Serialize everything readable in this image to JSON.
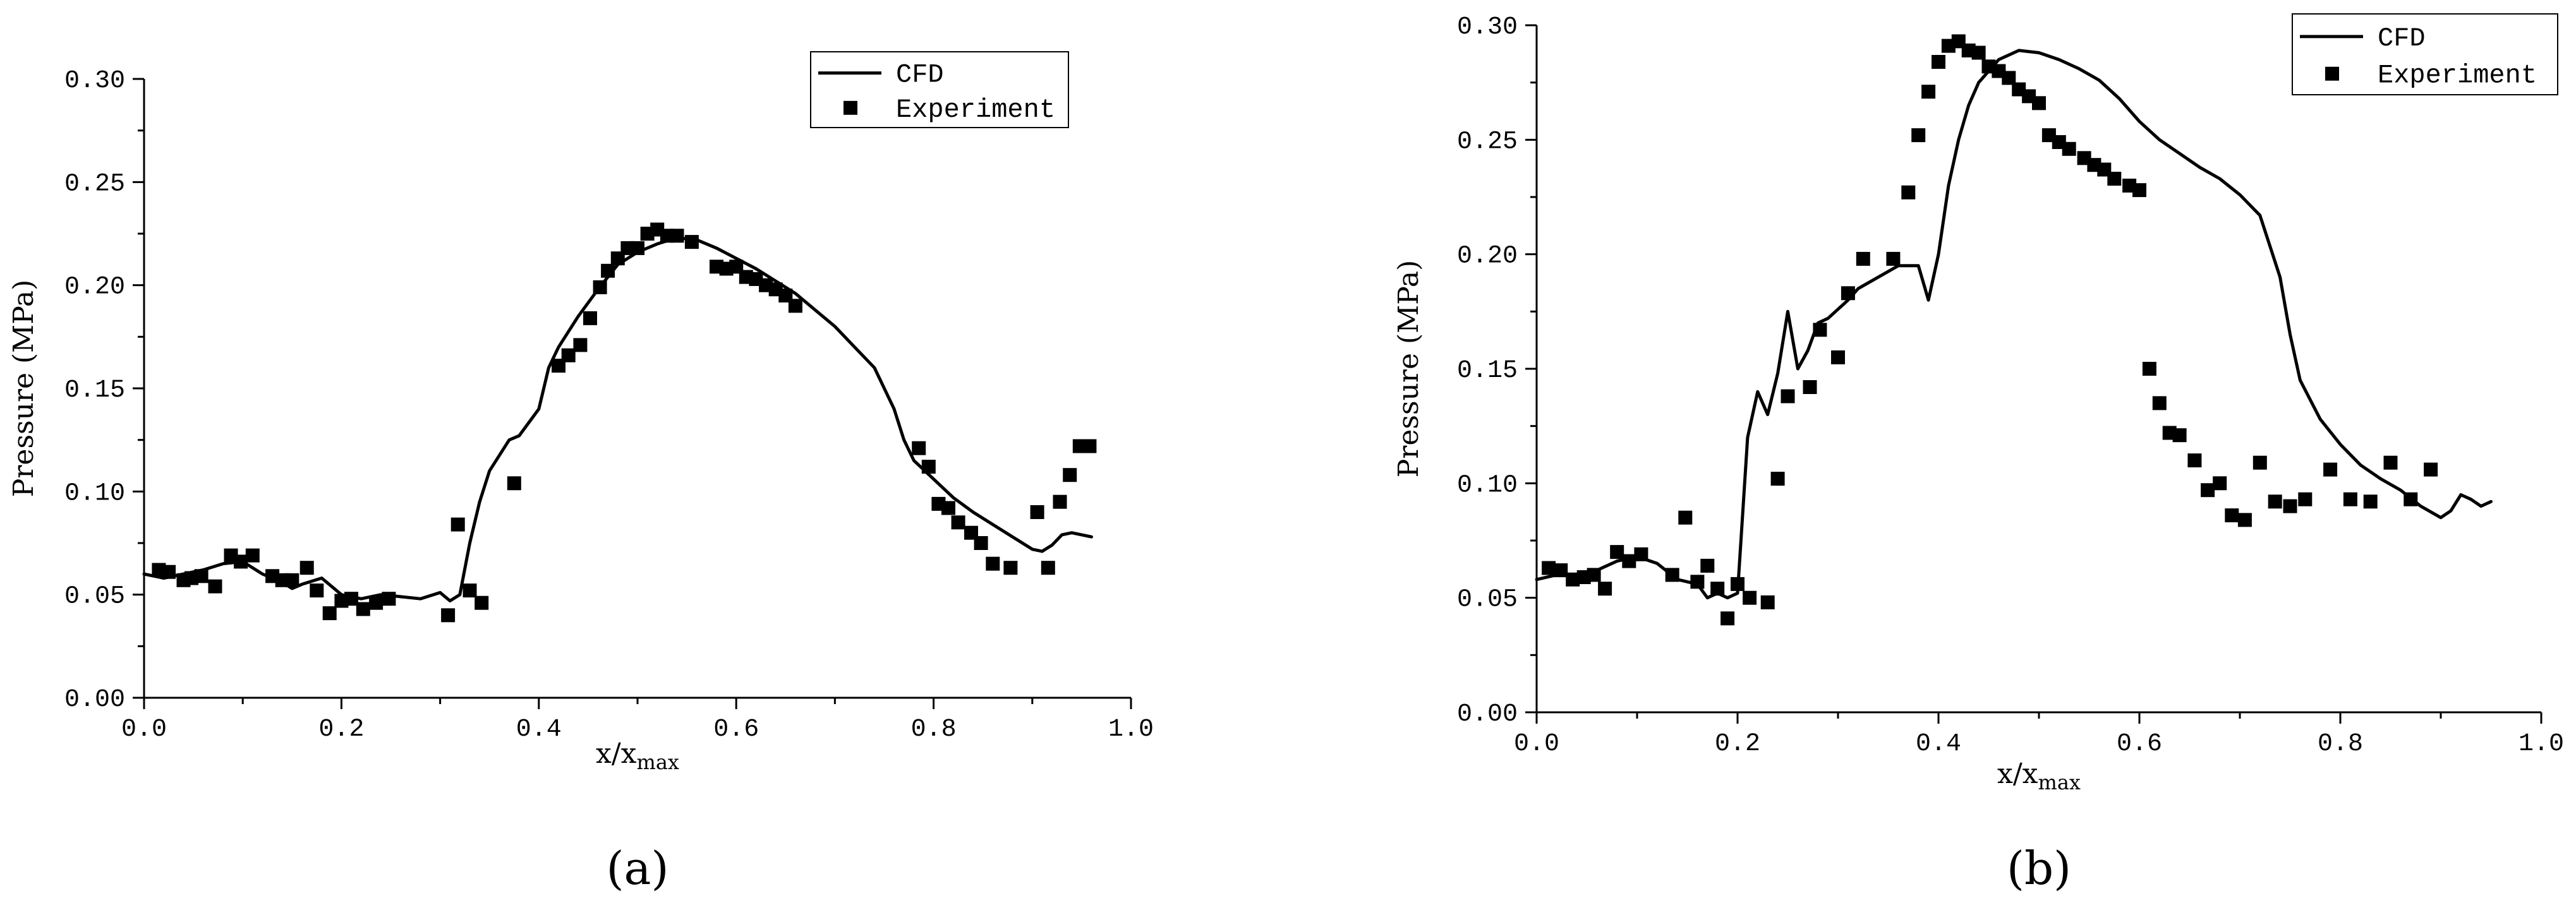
{
  "chart_data": [
    {
      "type": "line+scatter",
      "panel_label": "(a)",
      "xlabel": "x/x",
      "xlabel_sub": "max",
      "ylabel": "Pressure (MPa)",
      "xlim": [
        0.0,
        1.0
      ],
      "ylim": [
        0.0,
        0.3
      ],
      "x_ticks": [
        "0.0",
        "0.2",
        "0.4",
        "0.6",
        "0.8",
        "1.0"
      ],
      "y_ticks": [
        "0.00",
        "0.05",
        "0.10",
        "0.15",
        "0.20",
        "0.25",
        "0.30"
      ],
      "legend": {
        "position": "top-right",
        "entries": [
          {
            "label": "CFD",
            "kind": "line"
          },
          {
            "label": "Experiment",
            "kind": "marker"
          }
        ]
      },
      "series": [
        {
          "name": "CFD",
          "kind": "line",
          "x": [
            0.0,
            0.02,
            0.04,
            0.06,
            0.08,
            0.1,
            0.12,
            0.14,
            0.15,
            0.16,
            0.18,
            0.2,
            0.22,
            0.24,
            0.26,
            0.28,
            0.3,
            0.31,
            0.32,
            0.33,
            0.34,
            0.35,
            0.37,
            0.38,
            0.4,
            0.41,
            0.42,
            0.44,
            0.46,
            0.48,
            0.5,
            0.52,
            0.54,
            0.56,
            0.58,
            0.6,
            0.62,
            0.64,
            0.66,
            0.68,
            0.7,
            0.72,
            0.74,
            0.76,
            0.77,
            0.78,
            0.8,
            0.82,
            0.84,
            0.86,
            0.88,
            0.9,
            0.91,
            0.92,
            0.93,
            0.94,
            0.95,
            0.96
          ],
          "y": [
            0.06,
            0.058,
            0.06,
            0.062,
            0.065,
            0.066,
            0.06,
            0.056,
            0.053,
            0.055,
            0.058,
            0.05,
            0.048,
            0.05,
            0.049,
            0.048,
            0.051,
            0.047,
            0.05,
            0.075,
            0.095,
            0.11,
            0.125,
            0.127,
            0.14,
            0.16,
            0.17,
            0.185,
            0.198,
            0.21,
            0.216,
            0.22,
            0.223,
            0.222,
            0.218,
            0.213,
            0.208,
            0.202,
            0.196,
            0.188,
            0.18,
            0.17,
            0.16,
            0.14,
            0.125,
            0.115,
            0.106,
            0.097,
            0.09,
            0.084,
            0.078,
            0.072,
            0.071,
            0.074,
            0.079,
            0.08,
            0.079,
            0.078
          ]
        },
        {
          "name": "Experiment",
          "kind": "scatter",
          "x": [
            0.015,
            0.025,
            0.04,
            0.048,
            0.058,
            0.072,
            0.088,
            0.098,
            0.11,
            0.13,
            0.14,
            0.15,
            0.165,
            0.175,
            0.188,
            0.2,
            0.21,
            0.222,
            0.235,
            0.248,
            0.308,
            0.318,
            0.33,
            0.342,
            0.375,
            0.42,
            0.43,
            0.442,
            0.452,
            0.462,
            0.47,
            0.48,
            0.49,
            0.5,
            0.51,
            0.52,
            0.53,
            0.54,
            0.555,
            0.58,
            0.59,
            0.6,
            0.61,
            0.62,
            0.63,
            0.64,
            0.65,
            0.66,
            0.785,
            0.795,
            0.805,
            0.815,
            0.825,
            0.838,
            0.848,
            0.86,
            0.878,
            0.905,
            0.916,
            0.928,
            0.938,
            0.948,
            0.958
          ],
          "y": [
            0.062,
            0.061,
            0.057,
            0.058,
            0.059,
            0.054,
            0.069,
            0.066,
            0.069,
            0.059,
            0.057,
            0.057,
            0.063,
            0.052,
            0.041,
            0.047,
            0.048,
            0.043,
            0.046,
            0.048,
            0.04,
            0.084,
            0.052,
            0.046,
            0.104,
            0.161,
            0.166,
            0.171,
            0.184,
            0.199,
            0.207,
            0.213,
            0.218,
            0.218,
            0.225,
            0.227,
            0.224,
            0.224,
            0.221,
            0.209,
            0.208,
            0.209,
            0.204,
            0.203,
            0.2,
            0.198,
            0.195,
            0.19,
            0.121,
            0.112,
            0.094,
            0.092,
            0.085,
            0.08,
            0.075,
            0.065,
            0.063,
            0.09,
            0.063,
            0.095,
            0.108,
            0.122,
            0.122
          ]
        }
      ]
    },
    {
      "type": "line+scatter",
      "panel_label": "(b)",
      "xlabel": "x/x",
      "xlabel_sub": "max",
      "ylabel": "Pressure (MPa)",
      "xlim": [
        0.0,
        1.0
      ],
      "ylim": [
        0.0,
        0.3
      ],
      "x_ticks": [
        "0.0",
        "0.2",
        "0.4",
        "0.6",
        "0.8",
        "1.0"
      ],
      "y_ticks": [
        "0.00",
        "0.05",
        "0.10",
        "0.15",
        "0.20",
        "0.25",
        "0.30"
      ],
      "legend": {
        "position": "top-right",
        "entries": [
          {
            "label": "CFD",
            "kind": "line"
          },
          {
            "label": "Experiment",
            "kind": "marker"
          }
        ]
      },
      "series": [
        {
          "name": "CFD",
          "kind": "line",
          "x": [
            0.0,
            0.02,
            0.04,
            0.06,
            0.08,
            0.1,
            0.12,
            0.14,
            0.16,
            0.17,
            0.18,
            0.19,
            0.2,
            0.21,
            0.22,
            0.23,
            0.24,
            0.25,
            0.26,
            0.27,
            0.28,
            0.29,
            0.3,
            0.31,
            0.32,
            0.34,
            0.36,
            0.38,
            0.39,
            0.4,
            0.41,
            0.42,
            0.43,
            0.44,
            0.46,
            0.48,
            0.5,
            0.52,
            0.54,
            0.56,
            0.58,
            0.6,
            0.62,
            0.64,
            0.66,
            0.68,
            0.7,
            0.72,
            0.74,
            0.75,
            0.76,
            0.78,
            0.8,
            0.82,
            0.84,
            0.86,
            0.88,
            0.9,
            0.91,
            0.92,
            0.93,
            0.94,
            0.95
          ],
          "y": [
            0.058,
            0.06,
            0.06,
            0.062,
            0.066,
            0.068,
            0.065,
            0.058,
            0.056,
            0.05,
            0.052,
            0.05,
            0.052,
            0.12,
            0.14,
            0.13,
            0.148,
            0.175,
            0.15,
            0.158,
            0.17,
            0.172,
            0.176,
            0.18,
            0.185,
            0.19,
            0.195,
            0.195,
            0.18,
            0.2,
            0.23,
            0.25,
            0.265,
            0.275,
            0.285,
            0.289,
            0.288,
            0.285,
            0.281,
            0.276,
            0.268,
            0.258,
            0.25,
            0.244,
            0.238,
            0.233,
            0.226,
            0.217,
            0.19,
            0.165,
            0.145,
            0.128,
            0.117,
            0.108,
            0.102,
            0.097,
            0.09,
            0.085,
            0.088,
            0.095,
            0.093,
            0.09,
            0.092
          ]
        },
        {
          "name": "Experiment",
          "kind": "scatter",
          "x": [
            0.012,
            0.024,
            0.036,
            0.047,
            0.057,
            0.068,
            0.08,
            0.092,
            0.104,
            0.135,
            0.148,
            0.16,
            0.17,
            0.18,
            0.19,
            0.2,
            0.212,
            0.23,
            0.24,
            0.25,
            0.272,
            0.282,
            0.3,
            0.31,
            0.325,
            0.355,
            0.37,
            0.38,
            0.39,
            0.4,
            0.41,
            0.42,
            0.43,
            0.44,
            0.45,
            0.46,
            0.47,
            0.48,
            0.49,
            0.5,
            0.51,
            0.52,
            0.53,
            0.545,
            0.555,
            0.565,
            0.575,
            0.59,
            0.6,
            0.61,
            0.62,
            0.63,
            0.64,
            0.655,
            0.668,
            0.68,
            0.692,
            0.705,
            0.72,
            0.735,
            0.75,
            0.765,
            0.79,
            0.81,
            0.83,
            0.85,
            0.87,
            0.89
          ],
          "y": [
            0.063,
            0.062,
            0.058,
            0.059,
            0.06,
            0.054,
            0.07,
            0.066,
            0.069,
            0.06,
            0.085,
            0.057,
            0.064,
            0.054,
            0.041,
            0.056,
            0.05,
            0.048,
            0.102,
            0.138,
            0.142,
            0.167,
            0.155,
            0.183,
            0.198,
            0.198,
            0.227,
            0.252,
            0.271,
            0.284,
            0.291,
            0.293,
            0.289,
            0.288,
            0.282,
            0.28,
            0.277,
            0.272,
            0.269,
            0.266,
            0.252,
            0.249,
            0.246,
            0.242,
            0.239,
            0.237,
            0.233,
            0.23,
            0.228,
            0.15,
            0.135,
            0.122,
            0.121,
            0.11,
            0.097,
            0.1,
            0.086,
            0.084,
            0.109,
            0.092,
            0.09,
            0.093,
            0.106,
            0.093,
            0.092,
            0.109,
            0.093,
            0.106
          ]
        }
      ]
    }
  ]
}
